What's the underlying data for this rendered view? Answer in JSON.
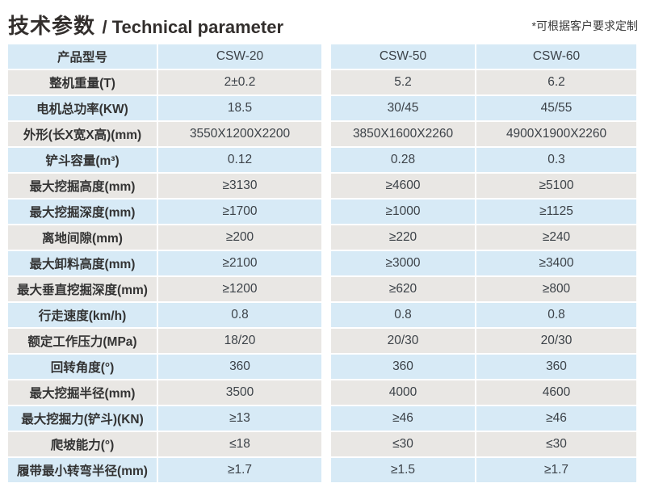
{
  "header": {
    "title_zh": "技术参数",
    "title_en": "/ Technical parameter",
    "note": "*可根据客户要求定制"
  },
  "table": {
    "columns": [
      "产品型号",
      "CSW-20",
      "CSW-50",
      "CSW-60"
    ],
    "rows": [
      {
        "label": "整机重量(T)",
        "values": [
          "2±0.2",
          "5.2",
          "6.2"
        ]
      },
      {
        "label": "电机总功率(KW)",
        "values": [
          "18.5",
          "30/45",
          "45/55"
        ]
      },
      {
        "label": "外形(长X宽X高)(mm)",
        "values": [
          "3550X1200X2200",
          "3850X1600X2260",
          "4900X1900X2260"
        ]
      },
      {
        "label": "铲斗容量(m³)",
        "values": [
          "0.12",
          "0.28",
          "0.3"
        ]
      },
      {
        "label": "最大挖掘高度(mm)",
        "values": [
          "≥3130",
          "≥4600",
          "≥5100"
        ]
      },
      {
        "label": "最大挖掘深度(mm)",
        "values": [
          "≥1700",
          "≥1000",
          "≥1125"
        ]
      },
      {
        "label": "离地间隙(mm)",
        "values": [
          "≥200",
          "≥220",
          "≥240"
        ]
      },
      {
        "label": "最大卸料高度(mm)",
        "values": [
          "≥2100",
          "≥3000",
          "≥3400"
        ]
      },
      {
        "label": "最大垂直挖掘深度(mm)",
        "values": [
          "≥1200",
          "≥620",
          "≥800"
        ]
      },
      {
        "label": "行走速度(km/h)",
        "values": [
          "0.8",
          "0.8",
          "0.8"
        ]
      },
      {
        "label": "额定工作压力(MPa)",
        "values": [
          "18/20",
          "20/30",
          "20/30"
        ]
      },
      {
        "label": "回转角度(°)",
        "values": [
          "360",
          "360",
          "360"
        ]
      },
      {
        "label": "最大挖掘半径(mm)",
        "values": [
          "3500",
          "4000",
          "4600"
        ]
      },
      {
        "label": "最大挖掘力(铲斗)(KN)",
        "values": [
          "≥13",
          "≥46",
          "≥46"
        ]
      },
      {
        "label": "爬坡能力(°)",
        "values": [
          "≤18",
          "≤30",
          "≤30"
        ]
      },
      {
        "label": "履带最小转弯半径(mm)",
        "values": [
          "≥1.7",
          "≥1.5",
          "≥1.7"
        ]
      }
    ],
    "colors": {
      "row_blue": "#d7eaf6",
      "row_gray": "#e9e7e4",
      "label_text": "#333333",
      "value_text": "#3c4248"
    }
  }
}
